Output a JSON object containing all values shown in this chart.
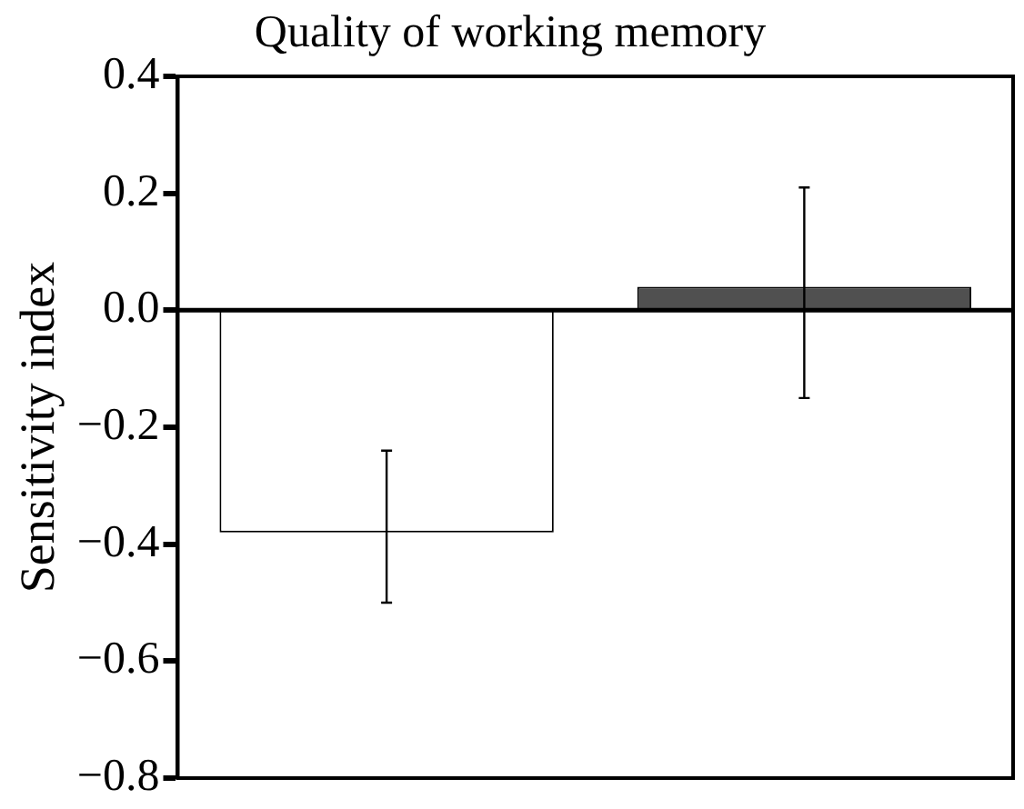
{
  "chart_data": {
    "type": "bar",
    "title": "Quality of working memory",
    "ylabel": "Sensitivity index",
    "categories": [
      null,
      null
    ],
    "values": [
      -0.38,
      0.04
    ],
    "colors": [
      "#ffffff",
      "#505050"
    ],
    "errors": [
      [
        -0.5,
        -0.24
      ],
      [
        -0.15,
        0.21
      ]
    ],
    "ylim": [
      -0.8,
      0.4
    ],
    "yticks": [
      {
        "value": -0.8,
        "label": "−0.8"
      },
      {
        "value": -0.6,
        "label": "−0.6"
      },
      {
        "value": -0.4,
        "label": "−0.4"
      },
      {
        "value": -0.2,
        "label": "−0.2"
      },
      {
        "value": 0,
        "label": "0.0"
      },
      {
        "value": 0.2,
        "label": "0.2"
      },
      {
        "value": 0.4,
        "label": "0.4"
      }
    ],
    "legend": false
  }
}
